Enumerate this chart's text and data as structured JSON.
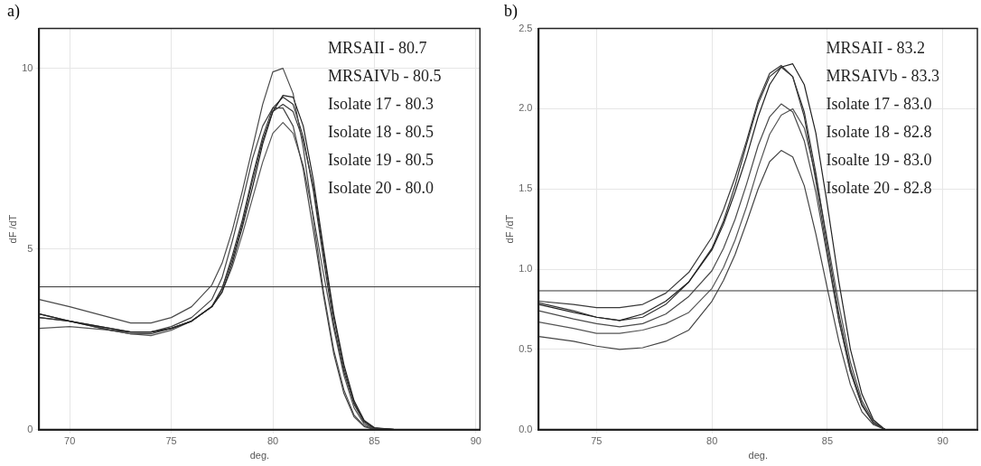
{
  "chart_data": [
    {
      "type": "line",
      "title": "a)",
      "xlabel": "deg.",
      "ylabel": "dF /dT",
      "xlim": [
        68.5,
        90.2
      ],
      "xticks": [
        70,
        75,
        80,
        85,
        90
      ],
      "ylim": [
        0,
        11.1
      ],
      "yticks": [
        0,
        5,
        10
      ],
      "grid": true,
      "legend": false,
      "marker": "none",
      "line_style": "solid",
      "x": [
        68.5,
        70,
        72,
        73,
        74,
        75,
        76,
        77,
        77.5,
        78,
        78.5,
        79,
        79.5,
        80,
        80.5,
        81,
        81.5,
        82,
        82.5,
        83,
        83.5,
        84,
        84.5,
        85,
        86,
        88,
        90
      ],
      "series": [
        {
          "color": "#4a4a4a",
          "values": [
            3.6,
            3.4,
            3.1,
            2.95,
            2.95,
            3.1,
            3.4,
            4.0,
            4.6,
            5.5,
            6.6,
            7.8,
            9.0,
            9.9,
            10.0,
            9.3,
            7.8,
            5.8,
            3.8,
            2.2,
            1.1,
            0.4,
            0.1,
            0.02,
            0,
            0,
            0
          ]
        },
        {
          "color": "#222222",
          "values": [
            3.2,
            3.0,
            2.8,
            2.7,
            2.7,
            2.8,
            3.0,
            3.4,
            3.8,
            4.6,
            5.6,
            6.7,
            7.9,
            8.8,
            9.25,
            9.2,
            8.4,
            6.9,
            5.0,
            3.2,
            1.8,
            0.8,
            0.25,
            0.05,
            0,
            0,
            0
          ]
        },
        {
          "color": "#333333",
          "values": [
            3.1,
            3.0,
            2.75,
            2.7,
            2.7,
            2.8,
            3.0,
            3.4,
            3.9,
            4.8,
            5.8,
            7.0,
            8.1,
            8.9,
            9.2,
            9.0,
            8.1,
            6.6,
            4.7,
            2.9,
            1.6,
            0.7,
            0.2,
            0.03,
            0,
            0,
            0
          ]
        },
        {
          "color": "#444444",
          "values": [
            3.1,
            3.0,
            2.8,
            2.7,
            2.7,
            2.85,
            3.1,
            3.6,
            4.2,
            5.2,
            6.3,
            7.5,
            8.4,
            8.9,
            8.9,
            8.4,
            7.2,
            5.5,
            3.7,
            2.1,
            1.0,
            0.35,
            0.08,
            0,
            0,
            0,
            0
          ]
        },
        {
          "color": "#555555",
          "values": [
            2.8,
            2.85,
            2.75,
            2.65,
            2.6,
            2.75,
            3.0,
            3.4,
            3.8,
            4.5,
            5.4,
            6.4,
            7.4,
            8.2,
            8.5,
            8.2,
            7.3,
            5.9,
            4.3,
            2.8,
            1.5,
            0.6,
            0.15,
            0.02,
            0,
            0,
            0
          ]
        },
        {
          "color": "#3a3a3a",
          "values": [
            3.2,
            3.0,
            2.75,
            2.65,
            2.65,
            2.8,
            3.0,
            3.4,
            3.9,
            4.7,
            5.7,
            6.9,
            8.0,
            8.8,
            9.0,
            8.8,
            8.0,
            6.7,
            4.9,
            3.1,
            1.7,
            0.75,
            0.22,
            0.04,
            0,
            0,
            0
          ]
        }
      ],
      "ref_lines": [
        {
          "axis": "y",
          "value": 3.95,
          "color": "#333333"
        }
      ],
      "annotations": [
        "MRSAII - 80.7",
        "MRSAIVb - 80.5",
        "Isolate 17 - 80.3",
        "Isolate 18 - 80.5",
        "Isolate 19 - 80.5",
        "Isolate 20 - 80.0"
      ]
    },
    {
      "type": "line",
      "title": "b)",
      "xlabel": "deg.",
      "ylabel": "dF /dT",
      "xlim": [
        72.5,
        91.5
      ],
      "xticks": [
        75,
        80,
        85,
        90
      ],
      "ylim": [
        0,
        2.5
      ],
      "yticks": [
        {
          "value": 0,
          "label": "0.0"
        },
        {
          "value": 0.5,
          "label": "0.5"
        },
        {
          "value": 1,
          "label": "1.0"
        },
        {
          "value": 1.5,
          "label": "1.5"
        },
        {
          "value": 2,
          "label": "2.0"
        },
        {
          "value": 2.5,
          "label": "2.5"
        }
      ],
      "grid": true,
      "legend": false,
      "marker": "none",
      "line_style": "solid",
      "x": [
        72.5,
        74,
        75,
        76,
        77,
        78,
        79,
        80,
        80.5,
        81,
        81.5,
        82,
        82.5,
        83,
        83.5,
        84,
        84.5,
        85,
        85.5,
        86,
        86.5,
        87,
        87.5,
        89,
        91.5
      ],
      "series": [
        {
          "color": "#3a3a3a",
          "values": [
            0.8,
            0.78,
            0.76,
            0.76,
            0.78,
            0.85,
            0.98,
            1.2,
            1.37,
            1.57,
            1.8,
            2.05,
            2.22,
            2.27,
            2.2,
            1.95,
            1.55,
            1.1,
            0.68,
            0.36,
            0.15,
            0.04,
            0,
            0,
            0
          ]
        },
        {
          "color": "#222222",
          "values": [
            0.78,
            0.73,
            0.7,
            0.68,
            0.72,
            0.8,
            0.92,
            1.12,
            1.28,
            1.48,
            1.7,
            1.95,
            2.15,
            2.26,
            2.28,
            2.15,
            1.85,
            1.4,
            0.92,
            0.5,
            0.22,
            0.06,
            0,
            0,
            0
          ]
        },
        {
          "color": "#333333",
          "values": [
            0.79,
            0.74,
            0.7,
            0.68,
            0.7,
            0.78,
            0.92,
            1.13,
            1.3,
            1.52,
            1.78,
            2.03,
            2.2,
            2.26,
            2.2,
            1.98,
            1.6,
            1.15,
            0.72,
            0.38,
            0.16,
            0.04,
            0,
            0,
            0
          ]
        },
        {
          "color": "#4a4a4a",
          "values": [
            0.74,
            0.69,
            0.66,
            0.64,
            0.66,
            0.72,
            0.83,
            0.99,
            1.13,
            1.31,
            1.53,
            1.77,
            1.95,
            2.03,
            1.98,
            1.8,
            1.48,
            1.08,
            0.68,
            0.36,
            0.15,
            0.04,
            0,
            0,
            0
          ]
        },
        {
          "color": "#555555",
          "values": [
            0.67,
            0.63,
            0.6,
            0.6,
            0.62,
            0.66,
            0.73,
            0.88,
            1.01,
            1.18,
            1.39,
            1.63,
            1.84,
            1.96,
            2.0,
            1.88,
            1.58,
            1.18,
            0.78,
            0.42,
            0.18,
            0.05,
            0,
            0,
            0
          ]
        },
        {
          "color": "#444444",
          "values": [
            0.58,
            0.55,
            0.52,
            0.5,
            0.51,
            0.55,
            0.62,
            0.8,
            0.93,
            1.09,
            1.29,
            1.5,
            1.67,
            1.74,
            1.7,
            1.52,
            1.22,
            0.88,
            0.55,
            0.28,
            0.11,
            0.03,
            0,
            0,
            0
          ]
        }
      ],
      "ref_lines": [
        {
          "axis": "y",
          "value": 0.865,
          "color": "#333333"
        }
      ],
      "annotations": [
        "MRSAII - 83.2",
        "MRSAIVb - 83.3",
        "Isolate 17 - 83.0",
        "Isolate 18 - 82.8",
        "Isoalte 19 - 83.0",
        "Isolate 20 - 82.8"
      ]
    }
  ]
}
